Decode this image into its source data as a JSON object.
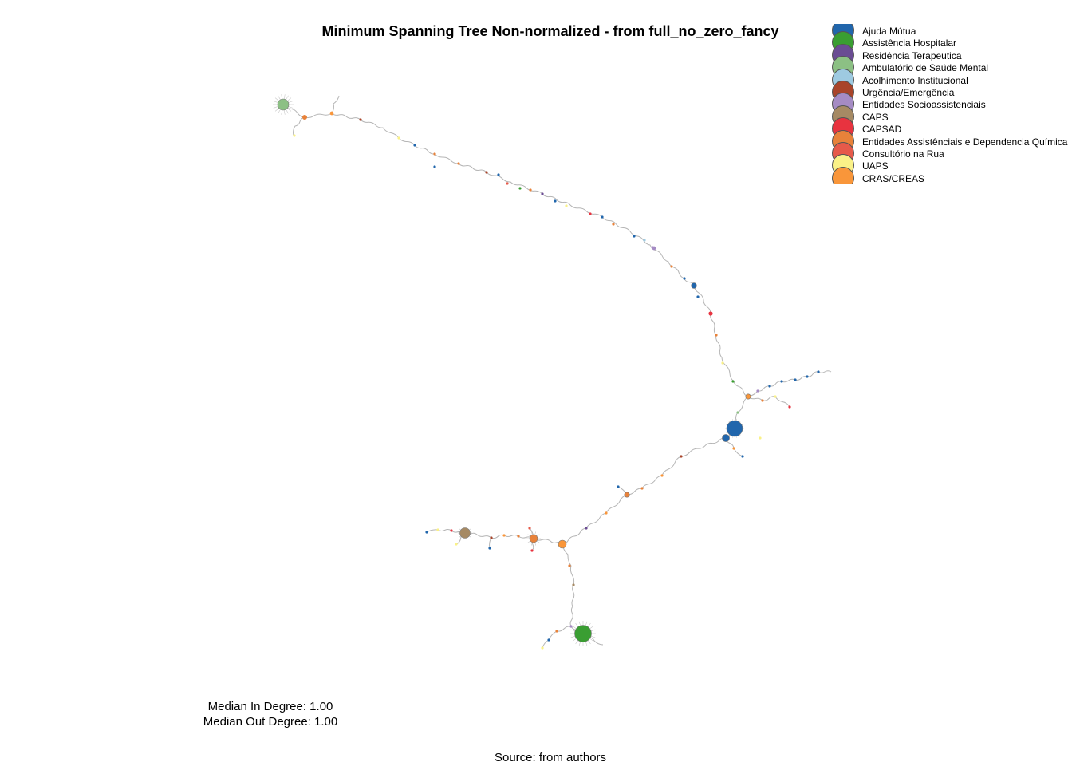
{
  "title": "Minimum Spanning Tree Non-normalized - from full_no_zero_fancy",
  "legend": [
    {
      "label": "Ajuda Mútua",
      "color": "#2166ac"
    },
    {
      "label": "Assistência Hospitalar",
      "color": "#3a9e32"
    },
    {
      "label": "Residência Terapeutica",
      "color": "#6a4c93"
    },
    {
      "label": "Ambulatório de Saúde Mental",
      "color": "#8cc084"
    },
    {
      "label": "Acolhimento Institucional",
      "color": "#9ecae1"
    },
    {
      "label": "Urgência/Emergência",
      "color": "#a9442a"
    },
    {
      "label": "Entidades Socioassistenciais",
      "color": "#a58bc4"
    },
    {
      "label": "CAPS",
      "color": "#a68a64"
    },
    {
      "label": "CAPSAD",
      "color": "#e8333f"
    },
    {
      "label": "Entidades Assistênciais e Dependencia Química",
      "color": "#e8823a"
    },
    {
      "label": "Consultório na Rua",
      "color": "#e65a4a"
    },
    {
      "label": "UAPS",
      "color": "#faf187"
    },
    {
      "label": "CRAS/CREAS",
      "color": "#f9963a"
    }
  ],
  "stats": {
    "median_in": "Median In Degree: 1.00",
    "median_out": "Median Out Degree: 1.00"
  },
  "source": "Source: from authors"
}
